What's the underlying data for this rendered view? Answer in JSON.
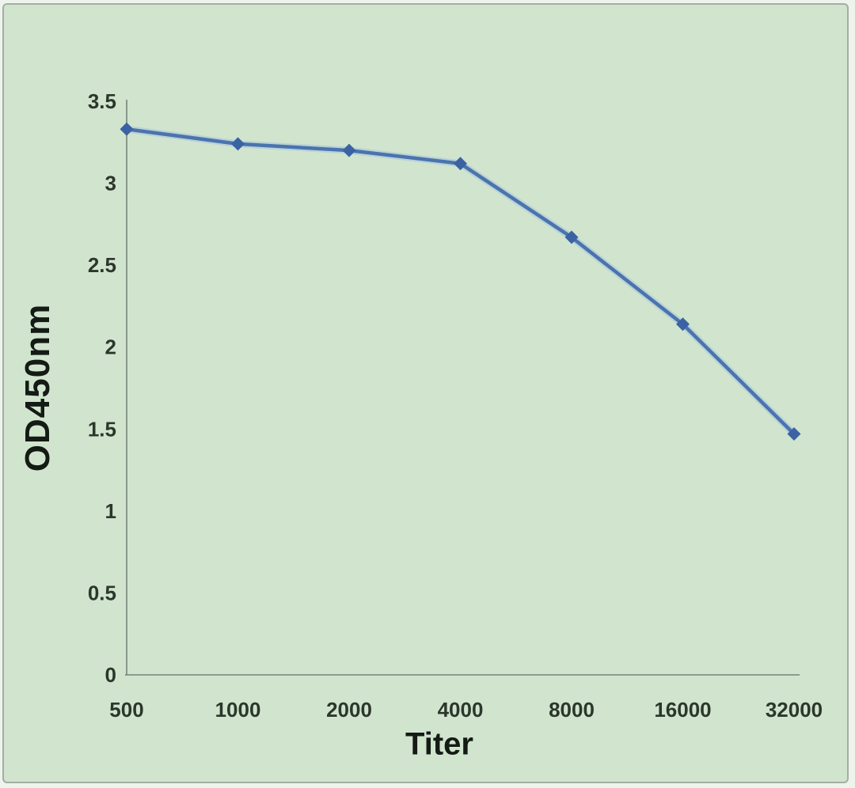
{
  "figure": {
    "background_color": "#d1e5ce",
    "border_color": "#a3aea3"
  },
  "chart_data": {
    "type": "line",
    "title": "",
    "xlabel": "Titer",
    "ylabel": "OD450nm",
    "categories": [
      "500",
      "1000",
      "2000",
      "4000",
      "8000",
      "16000",
      "32000"
    ],
    "series": [
      {
        "name": "OD450nm",
        "values": [
          3.33,
          3.24,
          3.2,
          3.12,
          2.67,
          2.14,
          1.47
        ]
      }
    ],
    "ylim": [
      0,
      3.5
    ],
    "yticks": [
      0,
      0.5,
      1,
      1.5,
      2,
      2.5,
      3,
      3.5
    ],
    "ytick_labels": [
      "0",
      "0.5",
      "1",
      "1.5",
      "2",
      "2.5",
      "3",
      "3.5"
    ],
    "grid": false,
    "legend_position": "none",
    "marker_shape": "diamond",
    "colors": {
      "line": "#4a74ad",
      "line_halo": "#a9c2de",
      "marker": "#3b63a3",
      "axis": "#75847a",
      "tick_text": "#2c372c"
    }
  }
}
